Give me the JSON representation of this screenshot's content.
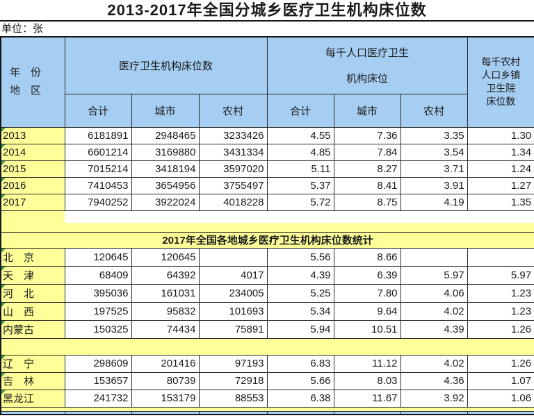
{
  "colors": {
    "header_blue": "#A6CDF2",
    "band_yellow": "#FFFF99",
    "indicator_green": "#43a047",
    "grid_line": "#2a2a2a"
  },
  "chart_data": {
    "type": "table",
    "title": "2013-2017年全国分城乡医疗卫生机构床位数",
    "unit_note": "单位：张",
    "columns": {
      "year_region_line1": "年　份",
      "year_region_line2": "地　区",
      "group_beds": "医疗卫生机构床位数",
      "group_per_capita_line1": "每千人口医疗卫生",
      "group_per_capita_line2": "机构床位",
      "rural_township_lines": [
        "每千农村",
        "人口乡镇",
        "卫生院",
        "床位数"
      ],
      "sub_headers": [
        "合计",
        "城市",
        "农村",
        "合计",
        "城市",
        "农村"
      ]
    },
    "national_rows": [
      {
        "label": "2013",
        "values": [
          "6181891",
          "2948465",
          "3233426",
          "4.55",
          "7.36",
          "3.35",
          "1.30"
        ]
      },
      {
        "label": "2014",
        "values": [
          "6601214",
          "3169880",
          "3431334",
          "4.85",
          "7.84",
          "3.54",
          "1.34"
        ]
      },
      {
        "label": "2015",
        "values": [
          "7015214",
          "3418194",
          "3597020",
          "5.11",
          "8.27",
          "3.71",
          "1.24"
        ]
      },
      {
        "label": "2016",
        "values": [
          "7410453",
          "3654956",
          "3755497",
          "5.37",
          "8.41",
          "3.91",
          "1.27"
        ]
      },
      {
        "label": "2017",
        "values": [
          "7940252",
          "3922024",
          "4018228",
          "5.72",
          "8.75",
          "4.19",
          "1.35"
        ]
      }
    ],
    "section_title": "2017年全国各地城乡医疗卫生机构床位数统计",
    "region_rows_group1": [
      {
        "label": "北　京",
        "values": [
          "120645",
          "120645",
          "",
          "5.56",
          "8.66",
          "",
          ""
        ]
      },
      {
        "label": "天　津",
        "values": [
          "68409",
          "64392",
          "4017",
          "4.39",
          "6.39",
          "5.97",
          "5.97"
        ]
      },
      {
        "label": "河　北",
        "values": [
          "395036",
          "161031",
          "234005",
          "5.25",
          "7.80",
          "4.06",
          "1.23"
        ]
      },
      {
        "label": "山　西",
        "values": [
          "197525",
          "95832",
          "101693",
          "5.34",
          "9.64",
          "4.02",
          "1.23"
        ]
      },
      {
        "label": "内蒙古",
        "values": [
          "150325",
          "74434",
          "75891",
          "5.94",
          "10.51",
          "4.39",
          "1.26"
        ]
      }
    ],
    "region_rows_group2": [
      {
        "label": "辽　宁",
        "values": [
          "298609",
          "201416",
          "97193",
          "6.83",
          "11.12",
          "4.02",
          "1.26"
        ]
      },
      {
        "label": "吉　林",
        "values": [
          "153657",
          "80739",
          "72918",
          "5.66",
          "8.03",
          "4.36",
          "1.07"
        ]
      },
      {
        "label": "黑龙江",
        "values": [
          "241732",
          "153179",
          "88553",
          "6.38",
          "11.67",
          "3.92",
          "1.06"
        ]
      }
    ]
  }
}
